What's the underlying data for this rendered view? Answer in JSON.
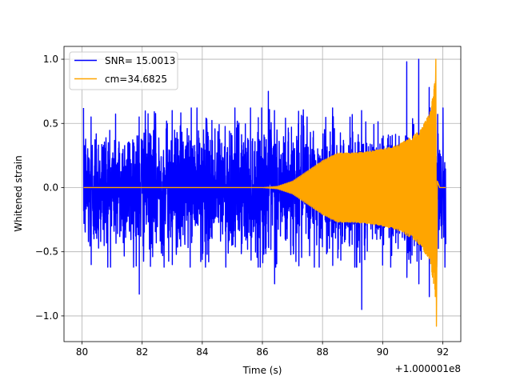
{
  "chart_data": {
    "type": "line",
    "title": "",
    "xlabel": "Time (s)",
    "ylabel": "Whitened strain",
    "x_offset_label": "+1.000001e8",
    "xlim": [
      79.4,
      92.6
    ],
    "ylim": [
      -1.2,
      1.1
    ],
    "xticks": [
      80,
      82,
      84,
      86,
      88,
      90,
      92
    ],
    "xtick_labels": [
      "80",
      "82",
      "84",
      "86",
      "88",
      "90",
      "92"
    ],
    "yticks": [
      -1.0,
      -0.5,
      0.0,
      0.5,
      1.0
    ],
    "ytick_labels": [
      "−1.0",
      "−0.5",
      "0.0",
      "0.5",
      "1.0"
    ],
    "grid": true,
    "legend_position": "upper left",
    "series": [
      {
        "name": "SNR= 15.0013",
        "color": "#0000ff",
        "description": "whitened noisy data",
        "x_range": [
          80.05,
          92.1
        ],
        "typical_amplitude": 0.45,
        "peaks": [
          {
            "x": 80.3,
            "y_max": 0.55,
            "y_min": -0.6
          },
          {
            "x": 81.9,
            "y_max": 0.55,
            "y_min": -0.83
          },
          {
            "x": 83.0,
            "y_max": 0.6,
            "y_min": -0.6
          },
          {
            "x": 86.2,
            "y_max": 0.75,
            "y_min": -0.45
          },
          {
            "x": 86.4,
            "y_max": 0.6,
            "y_min": -0.75
          },
          {
            "x": 89.3,
            "y_max": 0.6,
            "y_min": -0.95
          },
          {
            "x": 90.8,
            "y_max": 0.98,
            "y_min": -0.7
          },
          {
            "x": 91.2,
            "y_max": 1.0,
            "y_min": -0.75
          },
          {
            "x": 91.55,
            "y_max": 0.78,
            "y_min": -0.85
          },
          {
            "x": 91.75,
            "y_max": 0.62,
            "y_min": -0.82
          }
        ]
      },
      {
        "name": "cm=34.6825",
        "color": "#ffa500",
        "description": "whitened template (chirp)",
        "x_range": [
          80.05,
          92.1
        ],
        "envelope": [
          {
            "x": 80.05,
            "amp": 0.0
          },
          {
            "x": 86.0,
            "amp": 0.0
          },
          {
            "x": 86.5,
            "amp": 0.01
          },
          {
            "x": 87.0,
            "amp": 0.05
          },
          {
            "x": 87.5,
            "amp": 0.13
          },
          {
            "x": 88.0,
            "amp": 0.21
          },
          {
            "x": 88.5,
            "amp": 0.27
          },
          {
            "x": 89.0,
            "amp": 0.27
          },
          {
            "x": 89.5,
            "amp": 0.28
          },
          {
            "x": 90.0,
            "amp": 0.3
          },
          {
            "x": 90.5,
            "amp": 0.33
          },
          {
            "x": 91.0,
            "amp": 0.4
          },
          {
            "x": 91.3,
            "amp": 0.46
          },
          {
            "x": 91.6,
            "amp": 0.6
          },
          {
            "x": 91.75,
            "amp": 0.85
          }
        ],
        "merger": {
          "x": 91.78,
          "y_max": 1.0,
          "y_min": -1.08
        },
        "ringdown_end": 91.9
      }
    ]
  }
}
